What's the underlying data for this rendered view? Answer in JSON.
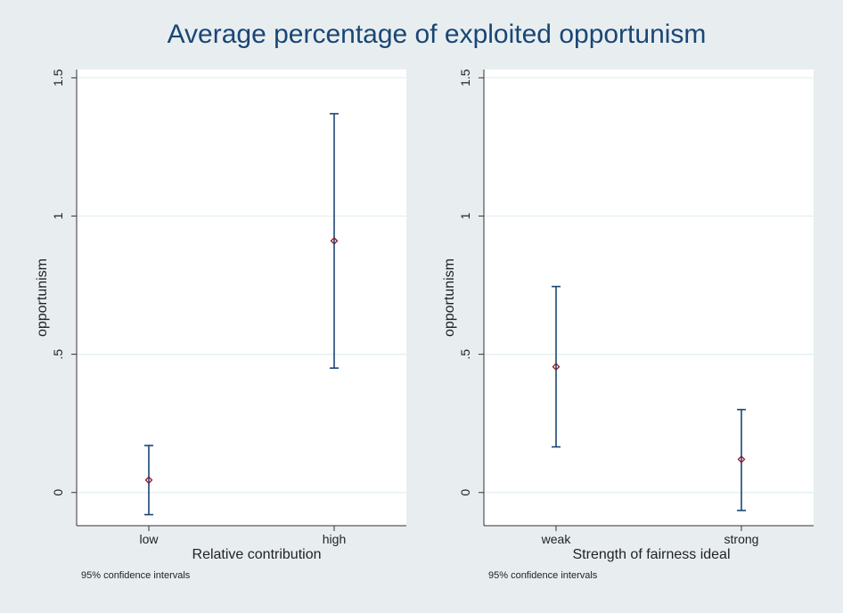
{
  "title": "Average percentage of exploited opportunism",
  "chart_data": [
    {
      "type": "scatter",
      "subtype": "point-with-confidence-intervals",
      "xlabel": "Relative contribution",
      "ylabel": "opportunism",
      "ylim": [
        -0.12,
        1.53
      ],
      "yticks": [
        0,
        0.5,
        1,
        1.5
      ],
      "ytick_labels": [
        "0",
        ".5",
        "1",
        "1.5"
      ],
      "categories": [
        "low",
        "high"
      ],
      "means": [
        0.045,
        0.91
      ],
      "ci_lower": [
        -0.08,
        0.45
      ],
      "ci_upper": [
        0.17,
        1.37
      ],
      "note": "95% confidence intervals",
      "grid": true
    },
    {
      "type": "scatter",
      "subtype": "point-with-confidence-intervals",
      "xlabel": "Strength of fairness ideal",
      "ylabel": "opportunism",
      "ylim": [
        -0.12,
        1.53
      ],
      "yticks": [
        0,
        0.5,
        1,
        1.5
      ],
      "ytick_labels": [
        "0",
        ".5",
        "1",
        "1.5"
      ],
      "categories": [
        "weak",
        "strong"
      ],
      "means": [
        0.455,
        0.12
      ],
      "ci_lower": [
        0.165,
        -0.065
      ],
      "ci_upper": [
        0.745,
        0.3
      ],
      "note": "95% confidence intervals",
      "grid": true
    }
  ],
  "colors": {
    "background": "#e8eef0",
    "plot_background": "#ffffff",
    "title": "#1a4675",
    "ci_line": "#1a4675",
    "point_marker": "#8b1a2a",
    "gridline": "#e2eef1"
  }
}
